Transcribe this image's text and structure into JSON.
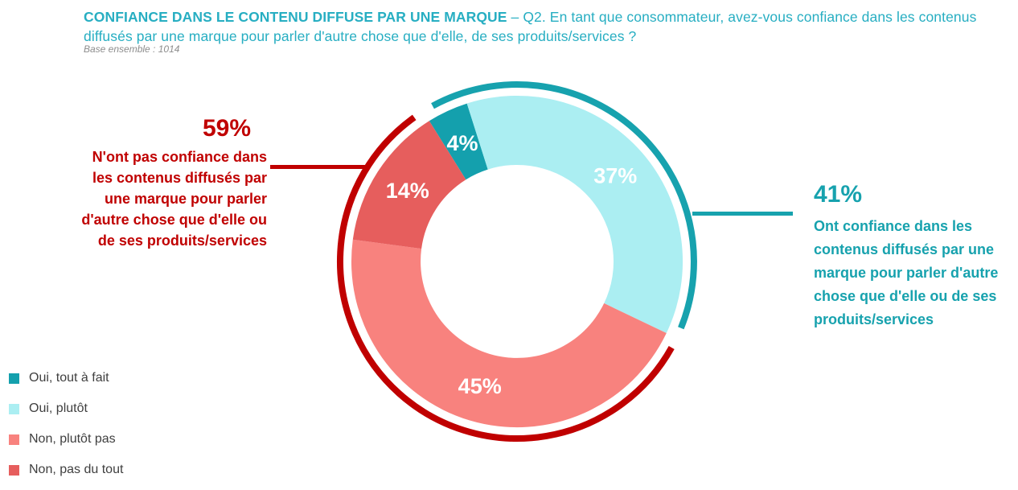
{
  "header": {
    "title_bold": "CONFIANCE DANS LE CONTENU DIFFUSE PAR UNE MARQUE",
    "title_rest": " – Q2. En tant que consommateur, avez-vous confiance dans les contenus diffusés par une marque pour parler d'autre chose que d'elle, de ses produits/services ?",
    "title_color": "#27aec2",
    "base_note": "Base ensemble : 1014",
    "base_note_color": "#8d8d8d"
  },
  "chart_data": {
    "type": "pie",
    "donut": true,
    "title": "CONFIANCE DANS LE CONTENU DIFFUSE PAR UNE MARQUE – Q2. En tant que consommateur, avez-vous confiance dans les contenus diffusés par une marque pour parler d'autre chose que d'elle, de ses produits/services ?",
    "start_angle_deg": -32,
    "slices": [
      {
        "label": "Oui, tout à fait",
        "value": 4,
        "display": "4%",
        "color": "#14a0ad"
      },
      {
        "label": "Oui, plutôt",
        "value": 37,
        "display": "37%",
        "color": "#abeef2"
      },
      {
        "label": "Non, plutôt pas",
        "value": 45,
        "display": "45%",
        "color": "#f8827e"
      },
      {
        "label": "Non, pas du tout",
        "value": 14,
        "display": "14%",
        "color": "#e65e5d"
      }
    ],
    "groups": [
      {
        "key": "oui",
        "display": "41%",
        "slices": [
          0,
          1
        ],
        "color": "#17a2ae"
      },
      {
        "key": "non",
        "display": "59%",
        "slices": [
          2,
          3
        ],
        "color": "#c00000"
      }
    ],
    "value_label_color": "#ffffff"
  },
  "annotations": {
    "left": {
      "pct": "59%",
      "text": "N'ont pas confiance dans\nles contenus diffusés par\nune marque pour parler\nd'autre chose que d'elle ou\nde ses produits/services",
      "color": "#c00000"
    },
    "right": {
      "pct": "41%",
      "text": "Ont confiance dans les\ncontenus diffusés par une\nmarque pour parler d'autre\nchose que d'elle ou de ses\nproduits/services",
      "color": "#17a2ae"
    }
  },
  "legend": {
    "text_color": "#3f3f3f",
    "items": [
      {
        "label": "Oui, tout à fait",
        "color": "#14a0ad"
      },
      {
        "label": "Oui, plutôt",
        "color": "#abeef2"
      },
      {
        "label": "Non, plutôt pas",
        "color": "#f8827e"
      },
      {
        "label": "Non, pas du tout",
        "color": "#e65e5d"
      }
    ]
  }
}
